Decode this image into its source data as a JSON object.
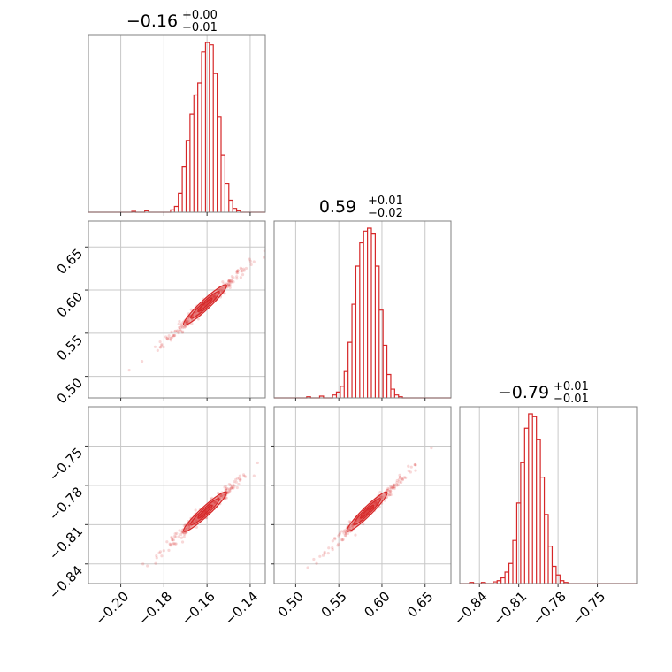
{
  "chart_data": {
    "type": "corner",
    "color": "#d62728",
    "parameters": [
      {
        "title": {
          "median": "−0.16",
          "upper": "+0.00",
          "lower": "−0.01"
        },
        "range": [
          -0.215,
          -0.133
        ],
        "ticks": [
          -0.2,
          -0.18,
          -0.16,
          -0.14
        ],
        "tick_labels": [
          "−0.20",
          "−0.18",
          "−0.16",
          "−0.14"
        ],
        "histogram": {
          "bin_width": 0.0018,
          "counts": [
            [
              -0.194,
              2
            ],
            [
              -0.188,
              3
            ],
            [
              -0.176,
              5
            ],
            [
              -0.1742,
              12
            ],
            [
              -0.1724,
              40
            ],
            [
              -0.1706,
              95
            ],
            [
              -0.1688,
              150
            ],
            [
              -0.167,
              205
            ],
            [
              -0.1652,
              245
            ],
            [
              -0.1634,
              270
            ],
            [
              -0.1616,
              335
            ],
            [
              -0.1598,
              355
            ],
            [
              -0.158,
              350
            ],
            [
              -0.1562,
              290
            ],
            [
              -0.1544,
              200
            ],
            [
              -0.1526,
              120
            ],
            [
              -0.1508,
              60
            ],
            [
              -0.149,
              25
            ],
            [
              -0.1472,
              8
            ],
            [
              -0.1454,
              3
            ]
          ]
        }
      },
      {
        "title": {
          "median": "0.59",
          "upper": "+0.01",
          "lower": "−0.02"
        },
        "range": [
          0.475,
          0.68
        ],
        "ticks": [
          0.5,
          0.55,
          0.6,
          0.65
        ],
        "tick_labels": [
          "0.50",
          "0.55",
          "0.60",
          "0.65"
        ],
        "histogram": {
          "bin_width": 0.0045,
          "counts": [
            [
              0.515,
              2
            ],
            [
              0.53,
              3
            ],
            [
              0.545,
              5
            ],
            [
              0.5495,
              10
            ],
            [
              0.554,
              20
            ],
            [
              0.5585,
              45
            ],
            [
              0.563,
              95
            ],
            [
              0.5675,
              160
            ],
            [
              0.572,
              225
            ],
            [
              0.5765,
              265
            ],
            [
              0.581,
              285
            ],
            [
              0.5855,
              290
            ],
            [
              0.59,
              280
            ],
            [
              0.5945,
              225
            ],
            [
              0.599,
              150
            ],
            [
              0.6035,
              90
            ],
            [
              0.608,
              40
            ],
            [
              0.6125,
              15
            ],
            [
              0.617,
              5
            ],
            [
              0.6215,
              2
            ]
          ]
        }
      },
      {
        "title": {
          "median": "−0.79",
          "upper": "+0.01",
          "lower": "−0.01"
        },
        "range": [
          -0.855,
          -0.72
        ],
        "ticks": [
          -0.84,
          -0.81,
          -0.78,
          -0.75
        ],
        "tick_labels": [
          "−0.84",
          "−0.81",
          "−0.78",
          "−0.75"
        ],
        "histogram": {
          "bin_width": 0.003,
          "counts": [
            [
              -0.846,
              2
            ],
            [
              -0.837,
              2
            ],
            [
              -0.828,
              3
            ],
            [
              -0.825,
              5
            ],
            [
              -0.822,
              10
            ],
            [
              -0.819,
              20
            ],
            [
              -0.816,
              35
            ],
            [
              -0.813,
              75
            ],
            [
              -0.81,
              140
            ],
            [
              -0.807,
              210
            ],
            [
              -0.804,
              270
            ],
            [
              -0.801,
              295
            ],
            [
              -0.798,
              290
            ],
            [
              -0.795,
              250
            ],
            [
              -0.792,
              185
            ],
            [
              -0.789,
              120
            ],
            [
              -0.786,
              65
            ],
            [
              -0.783,
              30
            ],
            [
              -0.78,
              15
            ],
            [
              -0.777,
              5
            ],
            [
              -0.774,
              2
            ]
          ]
        }
      }
    ],
    "scatter_2d": [
      {
        "x_param": 0,
        "y_param": 1
      },
      {
        "x_param": 0,
        "y_param": 2
      },
      {
        "x_param": 1,
        "y_param": 2
      }
    ],
    "grid": true
  }
}
